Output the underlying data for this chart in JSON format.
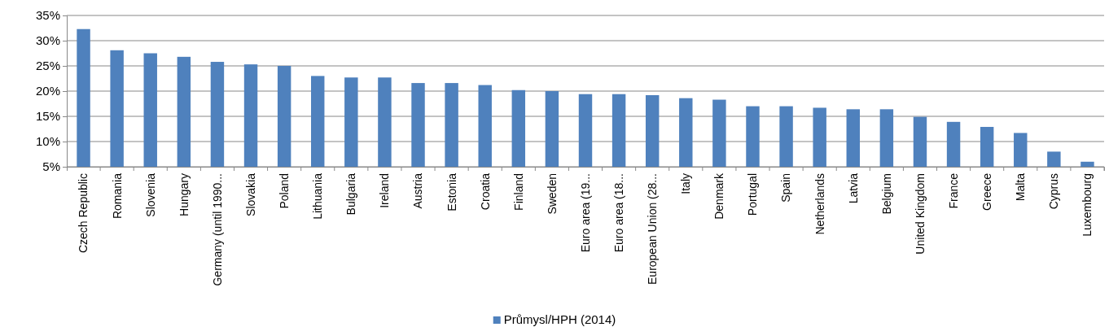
{
  "chart_data": {
    "type": "bar",
    "categories": [
      "Czech Republic",
      "Romania",
      "Slovenia",
      "Hungary",
      "Germany (until 1990...",
      "Slovakia",
      "Poland",
      "Lithuania",
      "Bulgaria",
      "Ireland",
      "Austria",
      "Estonia",
      "Croatia",
      "Finland",
      "Sweden",
      "Euro area (19...",
      "Euro area (18...",
      "European Union (28...",
      "Italy",
      "Denmark",
      "Portugal",
      "Spain",
      "Netherlands",
      "Latvia",
      "Belgium",
      "United Kingdom",
      "France",
      "Greece",
      "Malta",
      "Cyprus",
      "Luxembourg"
    ],
    "series": [
      {
        "name": "Průmysl/HPH (2014)",
        "color": "#4f81bd",
        "values": [
          32.3,
          28.1,
          27.5,
          26.8,
          25.8,
          25.3,
          25.0,
          23.0,
          22.7,
          22.7,
          21.6,
          21.6,
          21.2,
          20.2,
          20.0,
          19.4,
          19.4,
          19.2,
          18.6,
          18.3,
          17.0,
          17.0,
          16.7,
          16.4,
          16.4,
          14.9,
          13.9,
          12.9,
          11.7,
          8.0,
          6.0
        ]
      }
    ],
    "ylim": [
      5,
      35
    ],
    "yticks": [
      {
        "value": 5,
        "label": "5%"
      },
      {
        "value": 10,
        "label": "10%"
      },
      {
        "value": 15,
        "label": "15%"
      },
      {
        "value": 20,
        "label": "20%"
      },
      {
        "value": 25,
        "label": "25%"
      },
      {
        "value": 30,
        "label": "30%"
      },
      {
        "value": 35,
        "label": "35%"
      }
    ],
    "grid": "y",
    "legend": "bottom"
  }
}
